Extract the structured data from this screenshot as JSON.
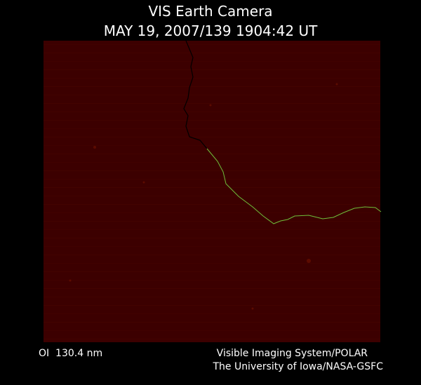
{
  "header": {
    "title": "VIS Earth Camera",
    "subtitle": "MAY 19, 2007/139 1904:42 UT"
  },
  "footer": {
    "filter": "OI  130.4 nm",
    "credit_lines": [
      "Visible Imaging System/POLAR",
      "The University of Iowa/NASA-GSFC"
    ]
  }
}
